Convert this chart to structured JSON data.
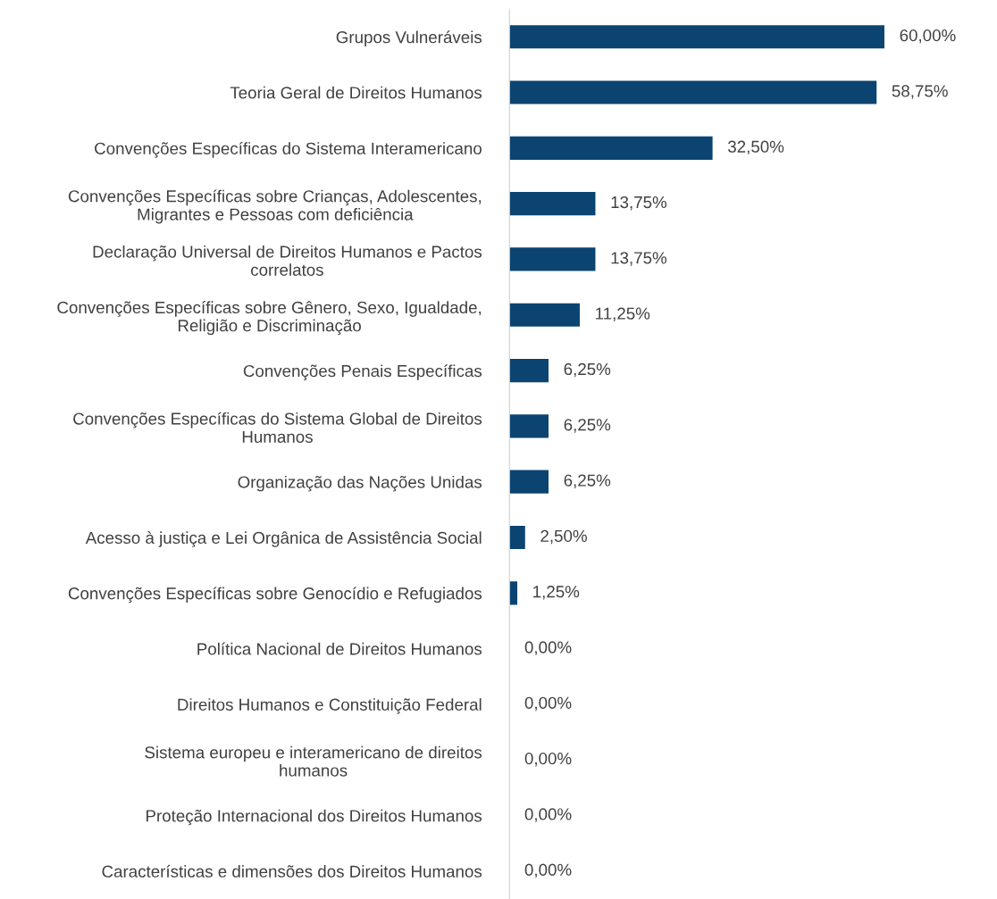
{
  "chart_data": {
    "type": "bar",
    "orientation": "horizontal",
    "categories": [
      "Grupos Vulneráveis",
      "Teoria Geral de Direitos Humanos",
      "Convenções Específicas do Sistema Interamericano",
      "Convenções Específicas sobre Crianças, Adolescentes,\nMigrantes e Pessoas com deficiência",
      "Declaração Universal de Direitos Humanos e Pactos\ncorrelatos",
      "Convenções Específicas sobre Gênero, Sexo, Igualdade,\nReligião e Discriminação",
      "Convenções Penais Específicas",
      "Convenções Específicas do Sistema Global de Direitos\nHumanos",
      "Organização das Nações Unidas",
      "Acesso à justiça e Lei Orgânica de Assistência Social",
      "Convenções Específicas sobre Genocídio e Refugiados",
      "Política Nacional de Direitos Humanos",
      "Direitos Humanos e Constituição Federal",
      "Sistema europeu e interamericano de direitos\nhumanos",
      "Proteção Internacional dos Direitos Humanos",
      "Características e dimensões dos Direitos Humanos"
    ],
    "values": [
      60.0,
      58.75,
      32.5,
      13.75,
      13.75,
      11.25,
      6.25,
      6.25,
      6.25,
      2.5,
      1.25,
      0.0,
      0.0,
      0.0,
      0.0,
      0.0
    ],
    "value_labels": [
      "60,00%",
      "58,75%",
      "32,50%",
      "13,75%",
      "13,75%",
      "11,25%",
      "6,25%",
      "6,25%",
      "6,25%",
      "2,50%",
      "1,25%",
      "0,00%",
      "0,00%",
      "0,00%",
      "0,00%",
      "0,00%"
    ],
    "color": "#0b4470",
    "grid": false,
    "legend": false
  }
}
